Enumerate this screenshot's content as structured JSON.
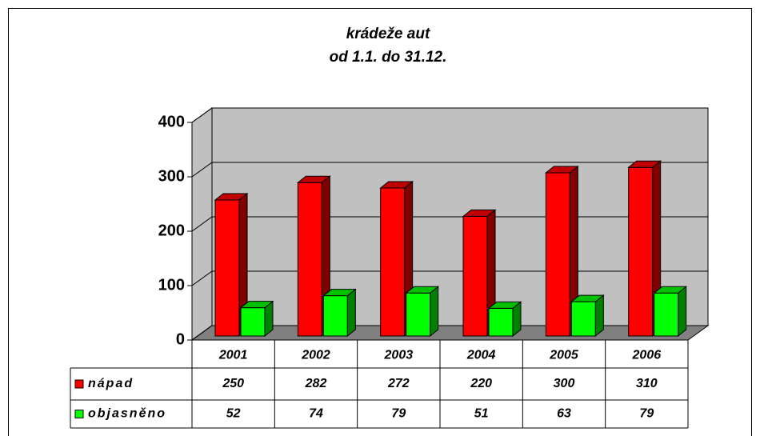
{
  "chart_data": {
    "type": "bar3d",
    "title": "krádeže aut",
    "subtitle": "od 1.1. do 31.12.",
    "categories": [
      "2001",
      "2002",
      "2003",
      "2004",
      "2005",
      "2006"
    ],
    "series": [
      {
        "name": "nápad",
        "color": "#ff0000",
        "values": [
          250,
          282,
          272,
          220,
          300,
          310
        ]
      },
      {
        "name": "objasněno",
        "color": "#00ff00",
        "values": [
          52,
          74,
          79,
          51,
          63,
          79
        ]
      }
    ],
    "ylim": [
      0,
      400
    ],
    "yticks": [
      0,
      100,
      200,
      300,
      400
    ],
    "grid": true
  }
}
